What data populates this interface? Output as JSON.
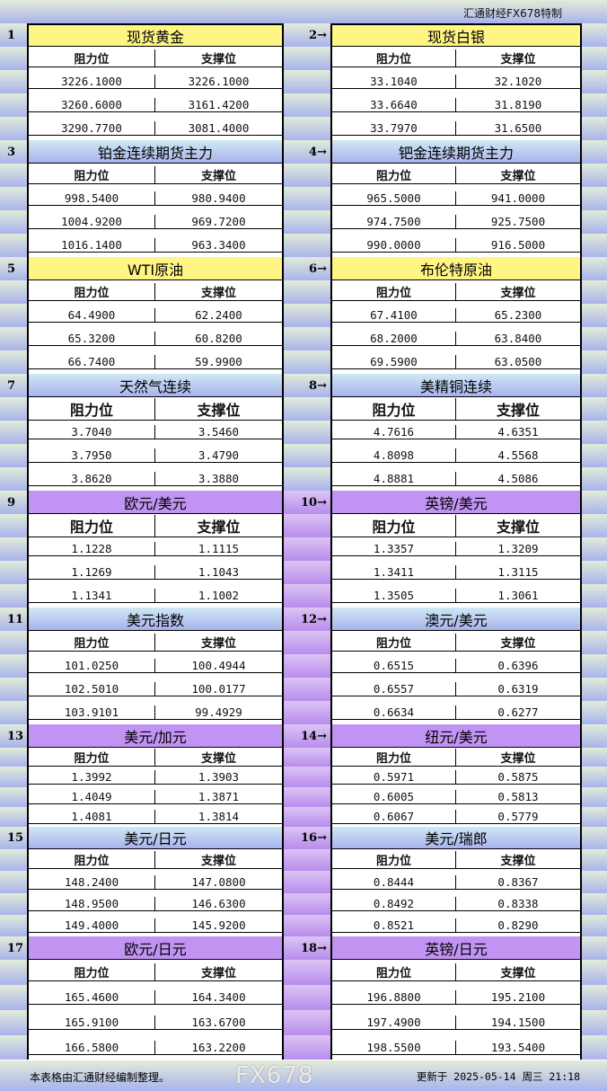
{
  "header": {
    "brand": "汇通财经FX678特制"
  },
  "columns": {
    "resistance": "阻力位",
    "support": "支撑位"
  },
  "colors": {
    "gold_title": "#fff585",
    "blue_title": "#a9b3ec",
    "purple_title": "#c193f2"
  },
  "pairs": [
    {
      "left": {
        "num": "1",
        "title": "现货黄金",
        "style": "gold",
        "rows": [
          [
            "3226.1000",
            "3226.1000"
          ],
          [
            "3260.6000",
            "3161.4200"
          ],
          [
            "3290.7700",
            "3081.4000"
          ]
        ]
      },
      "right": {
        "num": "2→",
        "title": "现货白银",
        "style": "gold",
        "rows": [
          [
            "33.1040",
            "32.1020"
          ],
          [
            "33.6640",
            "31.8190"
          ],
          [
            "33.7970",
            "31.6500"
          ]
        ]
      }
    },
    {
      "left": {
        "num": "3",
        "title": "铂金连续期货主力",
        "style": "blue",
        "rows": [
          [
            "998.5400",
            "980.9400"
          ],
          [
            "1004.9200",
            "969.7200"
          ],
          [
            "1016.1400",
            "963.3400"
          ]
        ]
      },
      "right": {
        "num": "4→",
        "title": "钯金连续期货主力",
        "style": "blue",
        "rows": [
          [
            "965.5000",
            "941.0000"
          ],
          [
            "974.7500",
            "925.7500"
          ],
          [
            "990.0000",
            "916.5000"
          ]
        ]
      }
    },
    {
      "left": {
        "num": "5",
        "title": "WTI原油",
        "style": "gold",
        "rows": [
          [
            "64.4900",
            "62.2400"
          ],
          [
            "65.3200",
            "60.8200"
          ],
          [
            "66.7400",
            "59.9900"
          ]
        ]
      },
      "right": {
        "num": "6→",
        "title": "布伦特原油",
        "style": "gold",
        "rows": [
          [
            "67.4100",
            "65.2300"
          ],
          [
            "68.2000",
            "63.8400"
          ],
          [
            "69.5900",
            "63.0500"
          ]
        ]
      }
    },
    {
      "left": {
        "num": "7",
        "title": "天然气连续",
        "style": "blue",
        "rows": [
          [
            "3.7040",
            "3.5460"
          ],
          [
            "3.7950",
            "3.4790"
          ],
          [
            "3.8620",
            "3.3880"
          ]
        ]
      },
      "right": {
        "num": "8→",
        "title": "美精铜连续",
        "style": "blue",
        "rows": [
          [
            "4.7616",
            "4.6351"
          ],
          [
            "4.8098",
            "4.5568"
          ],
          [
            "4.8881",
            "4.5086"
          ]
        ]
      }
    },
    {
      "left": {
        "num": "9",
        "title": "欧元/美元",
        "style": "purple",
        "rows": [
          [
            "1.1228",
            "1.1115"
          ],
          [
            "1.1269",
            "1.1043"
          ],
          [
            "1.1341",
            "1.1002"
          ]
        ]
      },
      "right": {
        "num": "10→",
        "title": "英镑/美元",
        "style": "purple",
        "rows": [
          [
            "1.3357",
            "1.3209"
          ],
          [
            "1.3411",
            "1.3115"
          ],
          [
            "1.3505",
            "1.3061"
          ]
        ]
      }
    },
    {
      "left": {
        "num": "11",
        "title": "美元指数",
        "style": "blue",
        "rows": [
          [
            "101.0250",
            "100.4944"
          ],
          [
            "102.5010",
            "100.0177"
          ],
          [
            "103.9101",
            "99.4929"
          ]
        ]
      },
      "right": {
        "num": "12→",
        "title": "澳元/美元",
        "style": "blue",
        "rows": [
          [
            "0.6515",
            "0.6396"
          ],
          [
            "0.6557",
            "0.6319"
          ],
          [
            "0.6634",
            "0.6277"
          ]
        ]
      }
    },
    {
      "left": {
        "num": "13",
        "title": "美元/加元",
        "style": "purple",
        "rows": [
          [
            "1.3992",
            "1.3903"
          ],
          [
            "1.4049",
            "1.3871"
          ],
          [
            "1.4081",
            "1.3814"
          ]
        ]
      },
      "right": {
        "num": "14→",
        "title": "纽元/美元",
        "style": "purple",
        "rows": [
          [
            "0.5971",
            "0.5875"
          ],
          [
            "0.6005",
            "0.5813"
          ],
          [
            "0.6067",
            "0.5779"
          ]
        ]
      }
    },
    {
      "left": {
        "num": "15",
        "title": "美元/日元",
        "style": "blue",
        "rows": [
          [
            "148.2400",
            "147.0800"
          ],
          [
            "148.9500",
            "146.6300"
          ],
          [
            "149.4000",
            "145.9200"
          ]
        ]
      },
      "right": {
        "num": "16→",
        "title": "美元/瑞郎",
        "style": "blue",
        "rows": [
          [
            "0.8444",
            "0.8367"
          ],
          [
            "0.8492",
            "0.8338"
          ],
          [
            "0.8521",
            "0.8290"
          ]
        ]
      }
    },
    {
      "left": {
        "num": "17",
        "title": "欧元/日元",
        "style": "purple",
        "rows": [
          [
            "165.4600",
            "164.3400"
          ],
          [
            "165.9100",
            "163.6700"
          ],
          [
            "166.5800",
            "163.2200"
          ]
        ]
      },
      "right": {
        "num": "18→",
        "title": "英镑/日元",
        "style": "purple",
        "rows": [
          [
            "196.8800",
            "195.2100"
          ],
          [
            "197.4900",
            "194.1500"
          ],
          [
            "198.5500",
            "193.5400"
          ]
        ]
      }
    }
  ],
  "footer": {
    "note": "本表格由汇通财经编制整理。",
    "updated": "更新于 2025-05-14 周三 21:18",
    "watermark": "FX678"
  }
}
